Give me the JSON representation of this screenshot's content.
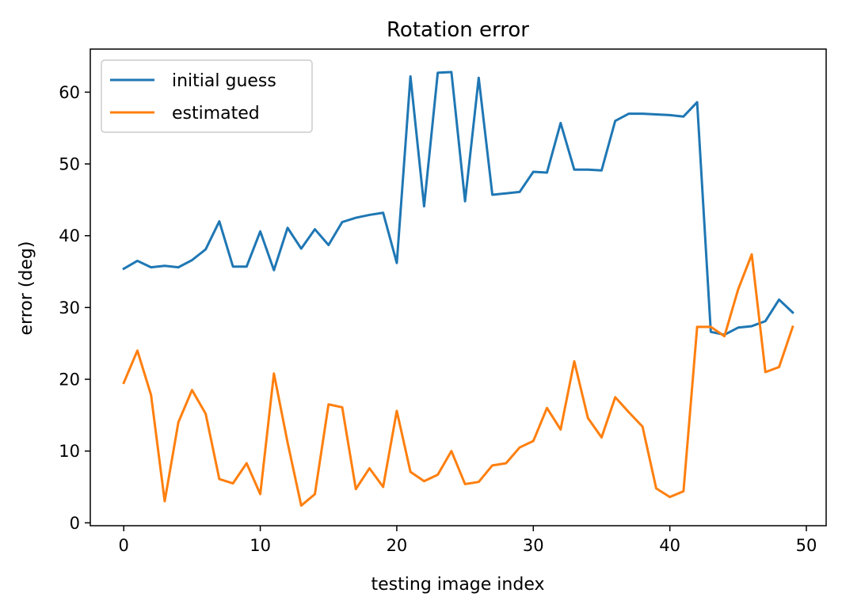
{
  "chart_data": {
    "type": "line",
    "title": "Rotation error",
    "xlabel": "testing image index",
    "ylabel": "error (deg)",
    "xlim": [
      -2.45,
      51.45
    ],
    "ylim": [
      -0.4,
      66.0
    ],
    "xticks": [
      0,
      10,
      20,
      30,
      40,
      50
    ],
    "yticks": [
      0,
      10,
      20,
      30,
      40,
      50,
      60
    ],
    "grid": false,
    "legend_position": "upper left",
    "x": [
      0,
      1,
      2,
      3,
      4,
      5,
      6,
      7,
      8,
      9,
      10,
      11,
      12,
      13,
      14,
      15,
      16,
      17,
      18,
      19,
      20,
      21,
      22,
      23,
      24,
      25,
      26,
      27,
      28,
      29,
      30,
      31,
      32,
      33,
      34,
      35,
      36,
      37,
      38,
      39,
      40,
      41,
      42,
      43,
      44,
      45,
      46,
      47,
      48,
      49
    ],
    "series": [
      {
        "name": "initial guess",
        "color": "#1f77b4",
        "values": [
          35.4,
          36.5,
          35.6,
          35.8,
          35.6,
          36.6,
          38.1,
          42.0,
          35.7,
          35.7,
          40.6,
          35.2,
          41.1,
          38.2,
          40.9,
          38.7,
          41.9,
          42.5,
          42.9,
          43.2,
          36.2,
          62.2,
          44.1,
          62.7,
          62.8,
          44.8,
          62.0,
          45.7,
          45.9,
          46.1,
          48.9,
          48.8,
          55.7,
          49.2,
          49.2,
          49.1,
          56.0,
          57.0,
          57.0,
          56.9,
          56.8,
          56.6,
          58.6,
          26.6,
          26.2,
          27.2,
          27.4,
          28.1,
          31.1,
          29.3
        ]
      },
      {
        "name": "estimated",
        "color": "#ff7f0e",
        "values": [
          19.5,
          24.0,
          17.8,
          3.0,
          14.0,
          18.5,
          15.2,
          6.1,
          5.5,
          8.3,
          4.0,
          20.8,
          11.2,
          2.4,
          4.0,
          16.5,
          16.1,
          4.7,
          7.6,
          5.0,
          15.6,
          7.1,
          5.8,
          6.7,
          10.0,
          5.4,
          5.7,
          8.0,
          8.3,
          10.5,
          11.4,
          16.0,
          13.0,
          22.5,
          14.6,
          11.9,
          17.5,
          15.4,
          13.4,
          4.8,
          3.6,
          4.4,
          27.3,
          27.3,
          26.0,
          32.5,
          37.4,
          21.0,
          21.7,
          27.3
        ]
      }
    ]
  }
}
